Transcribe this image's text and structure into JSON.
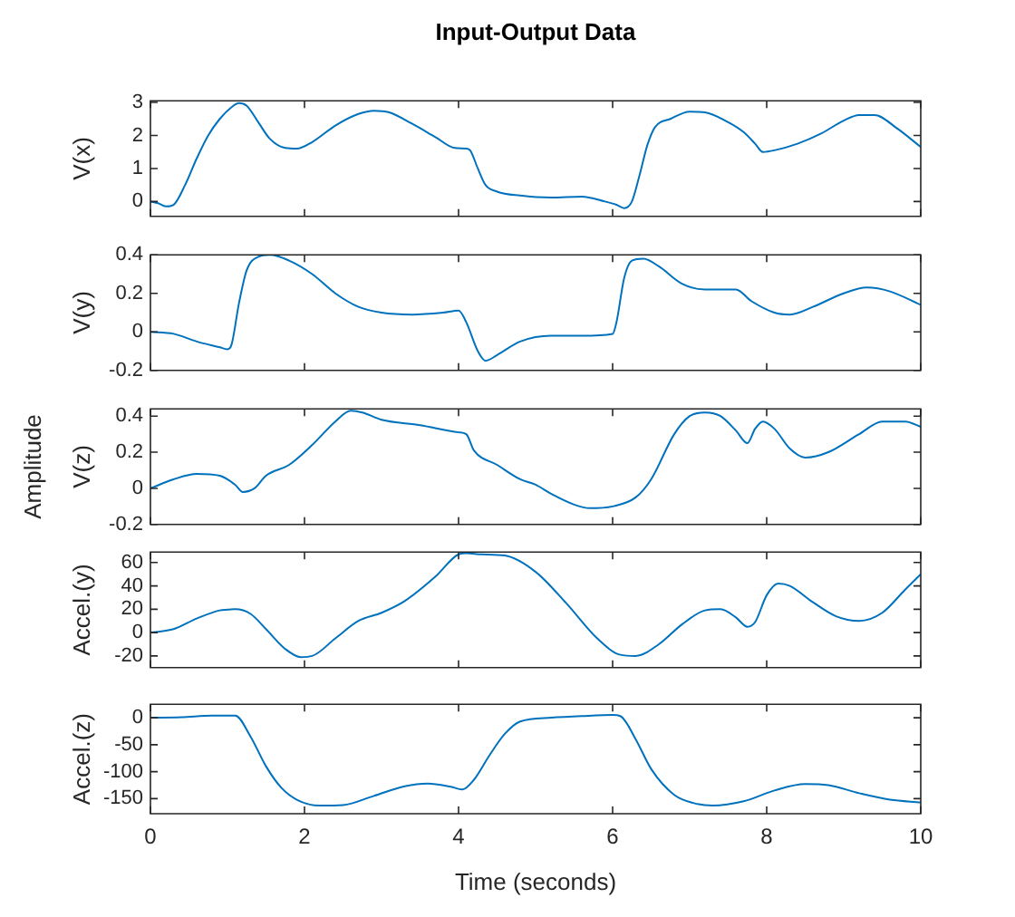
{
  "chart_data": [
    {
      "type": "line",
      "title": "Input-Output Data",
      "ylabel": "V(x)",
      "xlim": [
        0,
        10
      ],
      "xticks": [
        0,
        2,
        4,
        6,
        8,
        10
      ],
      "ylim": [
        -0.45,
        3.05
      ],
      "yticks": [
        0,
        1,
        2,
        3
      ],
      "tick_labels": "y",
      "x": [
        0,
        0.1,
        0.2,
        0.3,
        0.45,
        0.6,
        0.75,
        0.9,
        1.05,
        1.15,
        1.25,
        1.4,
        1.55,
        1.75,
        1.9,
        2.1,
        2.4,
        2.7,
        2.9,
        3.1,
        3.4,
        3.7,
        3.95,
        4.1,
        4.15,
        4.25,
        4.35,
        4.5,
        4.8,
        5.2,
        5.6,
        5.9,
        6.05,
        6.15,
        6.25,
        6.35,
        6.45,
        6.55,
        6.75,
        7.0,
        7.2,
        7.5,
        7.7,
        7.85,
        7.95,
        8.1,
        8.4,
        8.7,
        9.0,
        9.2,
        9.4,
        9.7,
        10
      ],
      "series": [
        {
          "color": "#0072bd",
          "values": [
            0,
            -0.05,
            -0.15,
            -0.1,
            0.5,
            1.3,
            2.0,
            2.5,
            2.85,
            2.98,
            2.9,
            2.4,
            1.9,
            1.62,
            1.6,
            1.8,
            2.3,
            2.65,
            2.75,
            2.7,
            2.35,
            1.95,
            1.62,
            1.6,
            1.55,
            1.0,
            0.5,
            0.3,
            0.18,
            0.12,
            0.15,
            0.0,
            -0.1,
            -0.2,
            0.0,
            0.8,
            1.7,
            2.25,
            2.5,
            2.72,
            2.7,
            2.4,
            2.1,
            1.75,
            1.5,
            1.55,
            1.75,
            2.05,
            2.45,
            2.62,
            2.62,
            2.2,
            1.65
          ]
        }
      ]
    },
    {
      "type": "line",
      "ylabel": "V(y)",
      "xlim": [
        0,
        10
      ],
      "xticks": [
        0,
        2,
        4,
        6,
        8,
        10
      ],
      "ylim": [
        -0.2,
        0.4
      ],
      "yticks": [
        -0.2,
        0,
        0.2,
        0.4
      ],
      "tick_labels": "y",
      "x": [
        0,
        0.3,
        0.6,
        0.9,
        1.0,
        1.05,
        1.15,
        1.25,
        1.4,
        1.55,
        1.8,
        2.1,
        2.4,
        2.7,
        3.0,
        3.4,
        3.8,
        4.0,
        4.1,
        4.25,
        4.35,
        4.5,
        4.8,
        5.2,
        5.6,
        6.0,
        6.05,
        6.15,
        6.25,
        6.4,
        6.6,
        6.9,
        7.2,
        7.6,
        7.8,
        8.1,
        8.3,
        8.6,
        9.0,
        9.3,
        9.6,
        10
      ],
      "series": [
        {
          "color": "#0072bd",
          "values": [
            0,
            -0.01,
            -0.05,
            -0.08,
            -0.09,
            -0.07,
            0.15,
            0.32,
            0.39,
            0.4,
            0.37,
            0.3,
            0.2,
            0.13,
            0.1,
            0.09,
            0.1,
            0.11,
            0.05,
            -0.1,
            -0.15,
            -0.12,
            -0.05,
            -0.02,
            -0.02,
            -0.01,
            0.05,
            0.28,
            0.37,
            0.38,
            0.34,
            0.25,
            0.22,
            0.22,
            0.16,
            0.1,
            0.09,
            0.13,
            0.2,
            0.23,
            0.21,
            0.14
          ]
        }
      ]
    },
    {
      "type": "line",
      "ylabel": "V(z)",
      "annotations": [
        "Amplitude"
      ],
      "xlim": [
        0,
        10
      ],
      "xticks": [
        0,
        2,
        4,
        6,
        8,
        10
      ],
      "ylim": [
        -0.2,
        0.44
      ],
      "yticks": [
        -0.2,
        0,
        0.2,
        0.4
      ],
      "tick_labels": "y",
      "x": [
        0,
        0.3,
        0.6,
        0.9,
        1.1,
        1.2,
        1.35,
        1.5,
        1.8,
        2.1,
        2.4,
        2.6,
        2.75,
        3.0,
        3.5,
        4.0,
        4.1,
        4.2,
        4.5,
        4.8,
        5.0,
        5.2,
        5.5,
        5.7,
        6.0,
        6.3,
        6.5,
        6.8,
        7.0,
        7.2,
        7.4,
        7.6,
        7.75,
        7.85,
        7.95,
        8.1,
        8.3,
        8.5,
        8.8,
        9.2,
        9.5,
        9.8,
        10
      ],
      "series": [
        {
          "color": "#0072bd",
          "values": [
            0,
            0.05,
            0.08,
            0.07,
            0.02,
            -0.02,
            0.0,
            0.07,
            0.13,
            0.24,
            0.37,
            0.43,
            0.42,
            0.38,
            0.35,
            0.31,
            0.3,
            0.21,
            0.13,
            0.05,
            0.02,
            -0.03,
            -0.09,
            -0.11,
            -0.1,
            -0.05,
            0.05,
            0.3,
            0.4,
            0.42,
            0.4,
            0.32,
            0.25,
            0.33,
            0.37,
            0.33,
            0.22,
            0.17,
            0.2,
            0.3,
            0.37,
            0.37,
            0.34
          ]
        }
      ]
    },
    {
      "type": "line",
      "ylabel": "Accel.(y)",
      "xlim": [
        0,
        10
      ],
      "xticks": [
        0,
        2,
        4,
        6,
        8,
        10
      ],
      "ylim": [
        -30,
        69
      ],
      "yticks": [
        -20,
        0,
        20,
        40,
        60
      ],
      "tick_labels": "y",
      "x": [
        0,
        0.3,
        0.6,
        0.9,
        1.1,
        1.3,
        1.5,
        1.75,
        1.95,
        2.1,
        2.4,
        2.7,
        3.0,
        3.3,
        3.7,
        4.0,
        4.1,
        4.3,
        4.6,
        5.0,
        5.4,
        5.8,
        6.1,
        6.3,
        6.6,
        6.9,
        7.2,
        7.4,
        7.6,
        7.75,
        7.85,
        8.0,
        8.15,
        8.3,
        8.6,
        8.9,
        9.2,
        9.5,
        9.8,
        10
      ],
      "series": [
        {
          "color": "#0072bd",
          "values": [
            0,
            3,
            12,
            19,
            20,
            16,
            3,
            -14,
            -21,
            -20,
            -5,
            10,
            17,
            27,
            48,
            67,
            68,
            67,
            66,
            52,
            25,
            -5,
            -19,
            -20,
            -10,
            7,
            19,
            20,
            13,
            5,
            9,
            32,
            42,
            40,
            26,
            14,
            10,
            17,
            37,
            50
          ]
        }
      ]
    },
    {
      "type": "line",
      "ylabel": "Accel.(z)",
      "xlabel": "Time (seconds)",
      "xlim": [
        0,
        10
      ],
      "xticks": [
        0,
        2,
        4,
        6,
        8,
        10
      ],
      "ylim": [
        -178,
        25
      ],
      "yticks": [
        -150,
        -100,
        -50,
        0
      ],
      "x": [
        0,
        0.4,
        0.8,
        1.1,
        1.3,
        1.5,
        1.7,
        1.9,
        2.2,
        2.5,
        2.9,
        3.3,
        3.6,
        3.9,
        4.05,
        4.2,
        4.4,
        4.6,
        4.8,
        5.2,
        5.6,
        6.0,
        6.1,
        6.3,
        6.5,
        6.8,
        7.1,
        7.3,
        7.7,
        8.1,
        8.5,
        8.8,
        9.2,
        9.6,
        10
      ],
      "series": [
        {
          "color": "#0072bd",
          "values": [
            0,
            1,
            4,
            4,
            -35,
            -90,
            -130,
            -152,
            -163,
            -162,
            -145,
            -127,
            -122,
            -128,
            -133,
            -115,
            -70,
            -30,
            -7,
            0,
            3,
            5,
            3,
            -40,
            -95,
            -143,
            -160,
            -163,
            -155,
            -135,
            -123,
            -125,
            -140,
            -152,
            -157
          ]
        }
      ]
    }
  ]
}
